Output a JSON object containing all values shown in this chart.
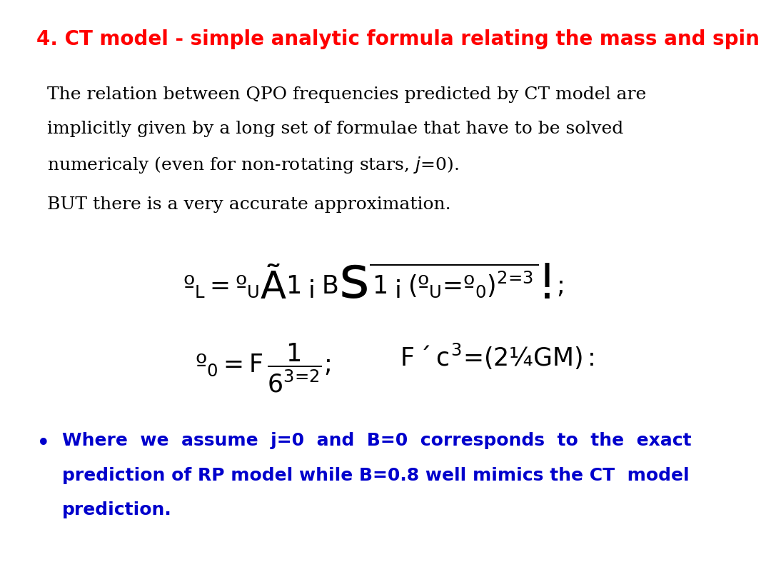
{
  "title": "4. CT model - simple analytic formula relating the mass and spin",
  "title_color": "#ff0000",
  "title_fontsize": 20,
  "body_text_2": "BUT there is a very accurate approximation.",
  "bullet_color": "#0000cc",
  "background_color": "#ffffff",
  "body_fontsize": 18,
  "eq_fontsize": 22,
  "bullet_fontsize": 18,
  "body1_lines": [
    "The relation between QPO frequencies predicted by CT model are",
    "implicitly given by a long set of formulae that have to be solved",
    "numericaly (even for non-rotating stars, $j$=0)."
  ],
  "bullet_lines": [
    "Where  we  assume  j=0  and  B=0  corresponds  to  the  exact",
    "prediction of RP model while B=0.8 well mimics the CT  model",
    "prediction."
  ]
}
